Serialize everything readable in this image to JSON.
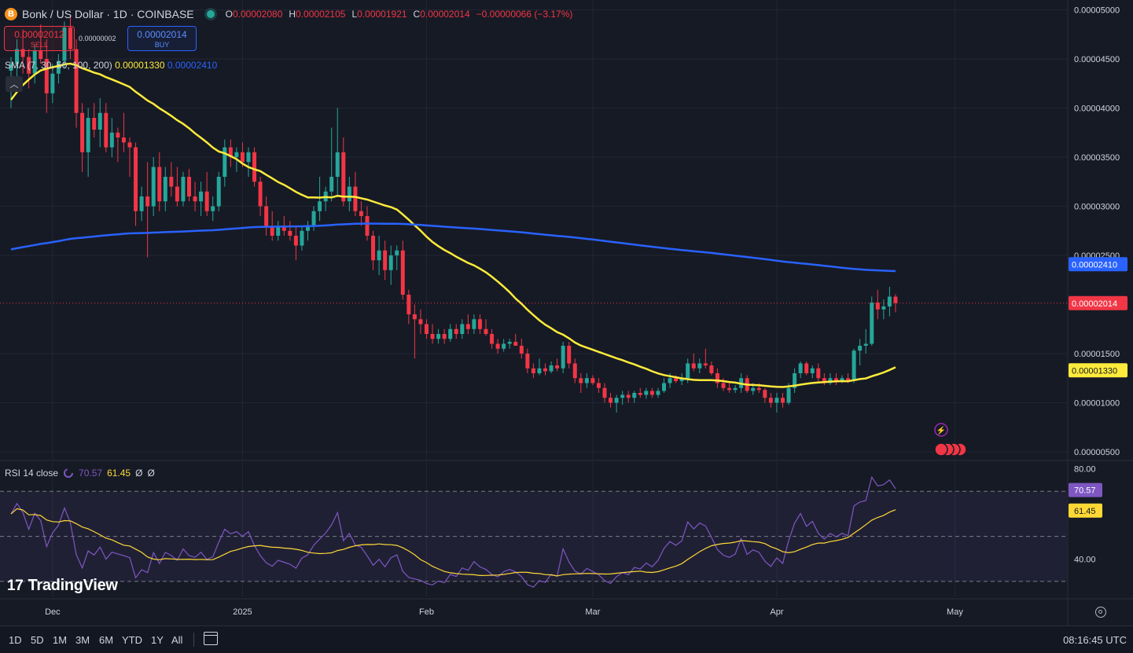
{
  "header": {
    "coin_glyph": "B",
    "symbol": "Bonk / US Dollar · 1D · COINBASE",
    "o_label": "O",
    "o_value": "0.00002080",
    "h_label": "H",
    "h_value": "0.00002105",
    "l_label": "L",
    "l_value": "0.00001921",
    "c_label": "C",
    "c_value": "0.00002014",
    "change": "−0.00000066 (−3.17%)"
  },
  "trade": {
    "sell_price": "0.00002012",
    "sell_label": "SELL",
    "spread": "0.00000002",
    "buy_price": "0.00002014",
    "buy_label": "BUY"
  },
  "sma_legend": {
    "name": "SMA (7, 30, 50, 100, 200)",
    "v1": "0.00001330",
    "v2": "0.00002410"
  },
  "rsi_legend": {
    "name": "RSI 14 close",
    "rsi": "70.57",
    "ma": "61.45",
    "e1": "Ø",
    "e2": "Ø"
  },
  "logo": {
    "text": "TradingView",
    "mark": "17"
  },
  "toolbar": {
    "ranges": [
      "1D",
      "5D",
      "1M",
      "3M",
      "6M",
      "YTD",
      "1Y",
      "All"
    ],
    "time": "08:16:45 UTC"
  },
  "colors": {
    "bg": "#161a25",
    "grid": "#232632",
    "up": "#26a69a",
    "down": "#f23645",
    "sma_fast": "#ffeb3b",
    "sma_slow": "#2962ff",
    "rsi": "#7e57c2",
    "rsi_ma": "#fdd835"
  },
  "chart_data": [
    {
      "type": "candlestick",
      "y_axis_labels": [
        "0.00005000",
        "0.00004500",
        "0.00004000",
        "0.00003500",
        "0.00003000",
        "0.00002500",
        "0.00001500",
        "0.00001000",
        "0.00000500"
      ],
      "x_axis_labels": [
        "Dec",
        "2025",
        "Feb",
        "Mar",
        "Apr",
        "May"
      ],
      "ylim": [
        4.2e-06,
        5.1e-05
      ],
      "price_tags": {
        "sma_slow_last": "0.00002410",
        "last_price": "0.00002014",
        "sma_fast_last": "0.00001330"
      },
      "last_price": 2.014e-05,
      "candles_ohlc_e8": [
        [
          4380,
          4520,
          4000,
          4450
        ],
        [
          4450,
          4700,
          4300,
          4600
        ],
        [
          4600,
          4800,
          4350,
          4520
        ],
        [
          4520,
          4600,
          4200,
          4350
        ],
        [
          4350,
          4650,
          4250,
          4580
        ],
        [
          4580,
          4850,
          4450,
          4500
        ],
        [
          4500,
          4700,
          3950,
          4150
        ],
        [
          4150,
          4450,
          4050,
          4350
        ],
        [
          4350,
          4550,
          4250,
          4480
        ],
        [
          4480,
          4880,
          4400,
          4820
        ],
        [
          4820,
          4950,
          4500,
          4600
        ],
        [
          4600,
          4700,
          3800,
          3950
        ],
        [
          3950,
          4050,
          3350,
          3550
        ],
        [
          3550,
          4000,
          3300,
          3900
        ],
        [
          3900,
          4050,
          3700,
          3780
        ],
        [
          3780,
          4100,
          3600,
          3950
        ],
        [
          3950,
          4050,
          3550,
          3600
        ],
        [
          3600,
          3900,
          3500,
          3750
        ],
        [
          3750,
          3800,
          3450,
          3700
        ],
        [
          3700,
          3950,
          3550,
          3650
        ],
        [
          3650,
          3700,
          3300,
          3600
        ],
        [
          3600,
          3650,
          2800,
          2950
        ],
        [
          2950,
          3200,
          2850,
          3100
        ],
        [
          3100,
          3450,
          2480,
          3000
        ],
        [
          3000,
          3500,
          2900,
          3400
        ],
        [
          3400,
          3550,
          2950,
          3050
        ],
        [
          3050,
          3400,
          2950,
          3300
        ],
        [
          3300,
          3450,
          3100,
          3200
        ],
        [
          3200,
          3400,
          3000,
          3050
        ],
        [
          3050,
          3350,
          3000,
          3300
        ],
        [
          3300,
          3380,
          3050,
          3100
        ],
        [
          3100,
          3250,
          2950,
          3050
        ],
        [
          3050,
          3250,
          2900,
          3150
        ],
        [
          3150,
          3350,
          2900,
          2950
        ],
        [
          2950,
          3100,
          2850,
          3000
        ],
        [
          3000,
          3350,
          2950,
          3300
        ],
        [
          3300,
          3680,
          3200,
          3600
        ],
        [
          3600,
          3680,
          3400,
          3500
        ],
        [
          3500,
          3600,
          3350,
          3550
        ],
        [
          3550,
          3650,
          3400,
          3450
        ],
        [
          3450,
          3600,
          3300,
          3550
        ],
        [
          3550,
          3600,
          3200,
          3250
        ],
        [
          3250,
          3300,
          2900,
          3000
        ],
        [
          3000,
          3100,
          2700,
          2800
        ],
        [
          2800,
          2950,
          2650,
          2700
        ],
        [
          2700,
          2850,
          2650,
          2800
        ],
        [
          2800,
          2900,
          2700,
          2750
        ],
        [
          2750,
          2850,
          2650,
          2700
        ],
        [
          2700,
          2800,
          2450,
          2600
        ],
        [
          2600,
          2800,
          2550,
          2750
        ],
        [
          2750,
          2850,
          2650,
          2800
        ],
        [
          2800,
          3000,
          2750,
          2950
        ],
        [
          2950,
          3300,
          2850,
          3050
        ],
        [
          3050,
          3200,
          2950,
          3150
        ],
        [
          3150,
          3800,
          3050,
          3300
        ],
        [
          3300,
          4000,
          3100,
          3550
        ],
        [
          3550,
          3700,
          3000,
          3050
        ],
        [
          3050,
          3300,
          2950,
          3200
        ],
        [
          3200,
          3350,
          2900,
          2950
        ],
        [
          2950,
          3050,
          2800,
          2900
        ],
        [
          2900,
          3000,
          2650,
          2700
        ],
        [
          2700,
          2750,
          2350,
          2450
        ],
        [
          2450,
          2700,
          2300,
          2550
        ],
        [
          2550,
          2650,
          2250,
          2350
        ],
        [
          2350,
          2600,
          2200,
          2500
        ],
        [
          2500,
          2600,
          2350,
          2550
        ],
        [
          2550,
          2650,
          2050,
          2100
        ],
        [
          2100,
          2150,
          1800,
          1900
        ],
        [
          1900,
          2000,
          1450,
          1850
        ],
        [
          1850,
          1950,
          1700,
          1800
        ],
        [
          1800,
          1850,
          1650,
          1700
        ],
        [
          1700,
          1800,
          1600,
          1650
        ],
        [
          1650,
          1750,
          1600,
          1700
        ],
        [
          1700,
          1750,
          1600,
          1650
        ],
        [
          1650,
          1800,
          1620,
          1750
        ],
        [
          1750,
          1800,
          1650,
          1700
        ],
        [
          1700,
          1850,
          1650,
          1800
        ],
        [
          1800,
          1900,
          1700,
          1750
        ],
        [
          1750,
          1900,
          1700,
          1850
        ],
        [
          1850,
          1900,
          1700,
          1750
        ],
        [
          1750,
          1850,
          1680,
          1700
        ],
        [
          1700,
          1750,
          1550,
          1600
        ],
        [
          1600,
          1650,
          1500,
          1550
        ],
        [
          1550,
          1650,
          1520,
          1600
        ],
        [
          1600,
          1650,
          1550,
          1620
        ],
        [
          1620,
          1700,
          1580,
          1580
        ],
        [
          1580,
          1650,
          1450,
          1500
        ],
        [
          1500,
          1550,
          1300,
          1350
        ],
        [
          1350,
          1400,
          1250,
          1300
        ],
        [
          1300,
          1450,
          1280,
          1350
        ],
        [
          1350,
          1400,
          1280,
          1320
        ],
        [
          1320,
          1420,
          1300,
          1380
        ],
        [
          1380,
          1450,
          1320,
          1350
        ],
        [
          1350,
          1620,
          1300,
          1580
        ],
        [
          1580,
          1620,
          1350,
          1400
        ],
        [
          1400,
          1450,
          1200,
          1250
        ],
        [
          1250,
          1300,
          1100,
          1200
        ],
        [
          1200,
          1300,
          1150,
          1250
        ],
        [
          1250,
          1280,
          1180,
          1200
        ],
        [
          1200,
          1250,
          1100,
          1150
        ],
        [
          1150,
          1200,
          1000,
          1050
        ],
        [
          1050,
          1100,
          950,
          1000
        ],
        [
          1000,
          1080,
          900,
          1050
        ],
        [
          1050,
          1120,
          980,
          1080
        ],
        [
          1080,
          1120,
          1000,
          1050
        ],
        [
          1050,
          1120,
          1000,
          1100
        ],
        [
          1100,
          1150,
          1050,
          1080
        ],
        [
          1080,
          1150,
          1040,
          1120
        ],
        [
          1120,
          1150,
          1050,
          1080
        ],
        [
          1080,
          1150,
          1050,
          1120
        ],
        [
          1120,
          1250,
          1100,
          1200
        ],
        [
          1200,
          1300,
          1150,
          1250
        ],
        [
          1250,
          1280,
          1200,
          1220
        ],
        [
          1220,
          1300,
          1180,
          1250
        ],
        [
          1250,
          1450,
          1200,
          1400
        ],
        [
          1400,
          1500,
          1320,
          1350
        ],
        [
          1350,
          1450,
          1300,
          1400
        ],
        [
          1400,
          1550,
          1350,
          1380
        ],
        [
          1380,
          1420,
          1280,
          1300
        ],
        [
          1300,
          1350,
          1150,
          1200
        ],
        [
          1200,
          1250,
          1120,
          1150
        ],
        [
          1150,
          1200,
          1100,
          1130
        ],
        [
          1130,
          1180,
          1100,
          1150
        ],
        [
          1150,
          1300,
          1100,
          1250
        ],
        [
          1250,
          1280,
          1100,
          1120
        ],
        [
          1120,
          1200,
          1080,
          1150
        ],
        [
          1150,
          1200,
          1100,
          1130
        ],
        [
          1130,
          1150,
          1000,
          1050
        ],
        [
          1050,
          1100,
          950,
          1000
        ],
        [
          1000,
          1100,
          900,
          1050
        ],
        [
          1050,
          1100,
          950,
          1000
        ],
        [
          1000,
          1200,
          980,
          1150
        ],
        [
          1150,
          1350,
          1100,
          1300
        ],
        [
          1300,
          1420,
          1250,
          1400
        ],
        [
          1400,
          1420,
          1280,
          1300
        ],
        [
          1300,
          1380,
          1250,
          1350
        ],
        [
          1350,
          1400,
          1200,
          1250
        ],
        [
          1250,
          1300,
          1180,
          1200
        ],
        [
          1200,
          1300,
          1180,
          1250
        ],
        [
          1250,
          1300,
          1180,
          1220
        ],
        [
          1220,
          1280,
          1200,
          1250
        ],
        [
          1250,
          1300,
          1200,
          1230
        ],
        [
          1230,
          1550,
          1200,
          1530
        ],
        [
          1530,
          1650,
          1380,
          1580
        ],
        [
          1580,
          1750,
          1500,
          1600
        ],
        [
          1600,
          2080,
          1580,
          2020
        ],
        [
          2020,
          2150,
          1850,
          1950
        ],
        [
          1950,
          2050,
          1850,
          1980
        ],
        [
          1980,
          2180,
          1880,
          2080
        ],
        [
          2080,
          2105,
          1921,
          2014
        ]
      ]
    },
    {
      "type": "line",
      "name": "RSI 14 close",
      "y_axis_labels": [
        "80.00",
        "40.00"
      ],
      "ylim": [
        23,
        83
      ],
      "bands": [
        70,
        50,
        30
      ],
      "value_tags": {
        "rsi": "70.57",
        "ma": "61.45"
      }
    }
  ]
}
